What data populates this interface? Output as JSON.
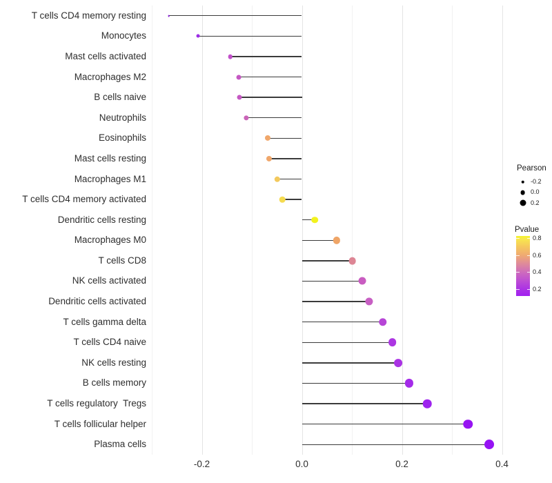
{
  "chart_data": {
    "type": "scatter",
    "subtype": "lollipop",
    "title": "",
    "xlabel": "",
    "ylabel": "",
    "xlim": [
      -0.3,
      0.42
    ],
    "x_ticks_major": [
      -0.2,
      0.0,
      0.2,
      0.4
    ],
    "x_tick_labels": [
      "-0.2",
      "0.0",
      "0.2",
      "0.4"
    ],
    "x_ticks_minor": [
      -0.3,
      -0.1,
      0.1,
      0.3
    ],
    "grid": "vertical gridlines only, light gray, no axis lines (theme_minimal)",
    "legend_position": "right",
    "points": [
      {
        "label": "T cells CD4 memory resting",
        "pearson": -0.266,
        "pvalue": 0.13,
        "color": "#8a23d8"
      },
      {
        "label": "Monocytes",
        "pearson": -0.208,
        "pvalue": 0.19,
        "color": "#9c2ce6"
      },
      {
        "label": "Mast cells activated",
        "pearson": -0.143,
        "pvalue": 0.32,
        "color": "#c250ca"
      },
      {
        "label": "Macrophages M2",
        "pearson": -0.126,
        "pvalue": 0.34,
        "color": "#c558c3"
      },
      {
        "label": "B cells naive",
        "pearson": -0.125,
        "pvalue": 0.34,
        "color": "#c558c3"
      },
      {
        "label": "Neutrophils",
        "pearson": -0.111,
        "pvalue": 0.38,
        "color": "#ca64b8"
      },
      {
        "label": "Eosinophils",
        "pearson": -0.068,
        "pvalue": 0.6,
        "color": "#f0a76b"
      },
      {
        "label": "Mast cells resting",
        "pearson": -0.066,
        "pvalue": 0.6,
        "color": "#f0a76b"
      },
      {
        "label": "Macrophages M1",
        "pearson": -0.049,
        "pvalue": 0.7,
        "color": "#f3c95d"
      },
      {
        "label": "T cells CD4 memory activated",
        "pearson": -0.039,
        "pvalue": 0.76,
        "color": "#f5db50"
      },
      {
        "label": "Dendritic cells resting",
        "pearson": 0.026,
        "pvalue": 0.85,
        "color": "#f2f21e"
      },
      {
        "label": "Macrophages M0",
        "pearson": 0.069,
        "pvalue": 0.61,
        "color": "#efa567"
      },
      {
        "label": "T cells CD8",
        "pearson": 0.101,
        "pvalue": 0.52,
        "color": "#dd8695"
      },
      {
        "label": "NK cells activated",
        "pearson": 0.121,
        "pvalue": 0.36,
        "color": "#c95cc1"
      },
      {
        "label": "Dendritic cells activated",
        "pearson": 0.134,
        "pvalue": 0.35,
        "color": "#c75fc3"
      },
      {
        "label": "T cells gamma delta",
        "pearson": 0.162,
        "pvalue": 0.27,
        "color": "#b645d6"
      },
      {
        "label": "T cells CD4 naive",
        "pearson": 0.181,
        "pvalue": 0.22,
        "color": "#ac36e2"
      },
      {
        "label": "NK cells resting",
        "pearson": 0.192,
        "pvalue": 0.21,
        "color": "#aa33e4"
      },
      {
        "label": "B cells memory",
        "pearson": 0.214,
        "pvalue": 0.18,
        "color": "#a42be9"
      },
      {
        "label": "T cells regulatory  Tregs",
        "pearson": 0.251,
        "pvalue": 0.15,
        "color": "#9e23ee"
      },
      {
        "label": "T cells follicular helper",
        "pearson": 0.332,
        "pvalue": 0.11,
        "color": "#9714f2"
      },
      {
        "label": "Plasma cells",
        "pearson": 0.375,
        "pvalue": 0.1,
        "color": "#9612f4"
      }
    ],
    "legend_size": {
      "title": "Pearson",
      "dot_color": "#000000",
      "entries": [
        {
          "label": "-0.2",
          "value": -0.2
        },
        {
          "label": "0.0",
          "value": 0.0
        },
        {
          "label": "0.2",
          "value": 0.2
        }
      ]
    },
    "legend_color": {
      "title": "Pvalue",
      "tick_labels": [
        "0.8",
        "0.6",
        "0.4",
        "0.2"
      ],
      "tick_values": [
        0.8,
        0.6,
        0.4,
        0.2
      ],
      "bar_value_top": 0.83,
      "bar_value_bottom": 0.12,
      "gradient_stops": [
        {
          "pos": 0.0,
          "color": "#f4f32a"
        },
        {
          "pos": 0.05,
          "color": "#f8e74e"
        },
        {
          "pos": 0.18,
          "color": "#f5c75e"
        },
        {
          "pos": 0.32,
          "color": "#efaa72"
        },
        {
          "pos": 0.46,
          "color": "#df8b9a"
        },
        {
          "pos": 0.6,
          "color": "#ce6cbb"
        },
        {
          "pos": 0.74,
          "color": "#be4fd3"
        },
        {
          "pos": 0.88,
          "color": "#ac33e4"
        },
        {
          "pos": 1.0,
          "color": "#a121f0"
        }
      ]
    },
    "colors": {
      "stem": "#3a3a3a",
      "gridline_major": "#e4e4e4",
      "gridline_minor": "#f1f1f1",
      "axis_text": "#2e2e2e",
      "background": "#ffffff"
    }
  }
}
